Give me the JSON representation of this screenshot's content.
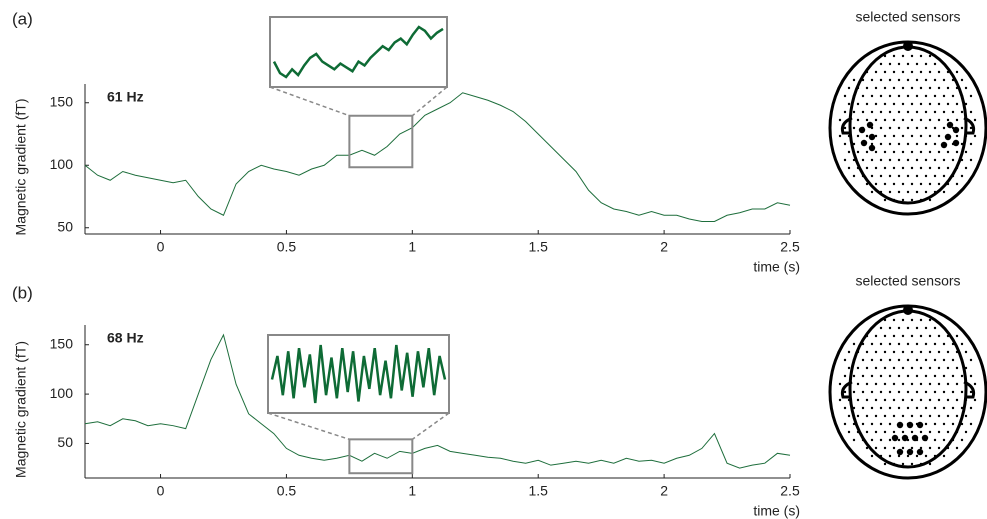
{
  "chart_data": [
    {
      "type": "line",
      "panel": "(a)",
      "annotation": "61 Hz",
      "ylabel": "Magnetic gradient (fT)",
      "xlabel": "time (s)",
      "sensor_title": "selected sensors",
      "color": "#1e6e3c",
      "x": [
        -0.3,
        -0.25,
        -0.2,
        -0.15,
        -0.1,
        -0.05,
        0,
        0.05,
        0.1,
        0.15,
        0.2,
        0.25,
        0.3,
        0.35,
        0.4,
        0.45,
        0.5,
        0.55,
        0.6,
        0.65,
        0.7,
        0.75,
        0.8,
        0.85,
        0.9,
        0.95,
        1.0,
        1.05,
        1.1,
        1.15,
        1.2,
        1.25,
        1.3,
        1.35,
        1.4,
        1.45,
        1.5,
        1.55,
        1.6,
        1.65,
        1.7,
        1.75,
        1.8,
        1.85,
        1.9,
        1.95,
        2.0,
        2.05,
        2.1,
        2.15,
        2.2,
        2.25,
        2.3,
        2.35,
        2.4,
        2.45,
        2.5
      ],
      "values": [
        100,
        92,
        88,
        95,
        92,
        90,
        88,
        86,
        88,
        75,
        65,
        60,
        85,
        95,
        100,
        97,
        95,
        92,
        97,
        100,
        108,
        108,
        112,
        108,
        115,
        125,
        130,
        140,
        145,
        150,
        158,
        155,
        152,
        148,
        143,
        135,
        125,
        115,
        105,
        95,
        80,
        70,
        65,
        63,
        60,
        63,
        60,
        60,
        57,
        55,
        55,
        60,
        62,
        65,
        65,
        70,
        68
      ],
      "zoom_x": [
        0.75,
        1.0
      ],
      "inset_values": [
        110,
        104,
        102,
        106,
        103,
        108,
        112,
        114,
        110,
        108,
        106,
        109,
        107,
        105,
        110,
        108,
        112,
        115,
        118,
        116,
        120,
        122,
        119,
        124,
        128,
        126,
        122,
        125,
        127
      ],
      "xlim": [
        -0.3,
        2.5
      ],
      "xticks": [
        0,
        0.5,
        1,
        1.5,
        2,
        2.5
      ],
      "ylim": [
        45,
        165
      ],
      "yticks": [
        50,
        100,
        150
      ]
    },
    {
      "type": "line",
      "panel": "(b)",
      "annotation": "68 Hz",
      "ylabel": "Magnetic gradient (fT)",
      "xlabel": "time (s)",
      "sensor_title": "selected sensors",
      "color": "#1e6e3c",
      "x": [
        -0.3,
        -0.25,
        -0.2,
        -0.15,
        -0.1,
        -0.05,
        0,
        0.05,
        0.1,
        0.15,
        0.2,
        0.25,
        0.3,
        0.35,
        0.4,
        0.45,
        0.5,
        0.55,
        0.6,
        0.65,
        0.7,
        0.75,
        0.8,
        0.85,
        0.9,
        0.95,
        1.0,
        1.05,
        1.1,
        1.15,
        1.2,
        1.25,
        1.3,
        1.35,
        1.4,
        1.45,
        1.5,
        1.55,
        1.6,
        1.65,
        1.7,
        1.75,
        1.8,
        1.85,
        1.9,
        1.95,
        2.0,
        2.05,
        2.1,
        2.15,
        2.2,
        2.25,
        2.3,
        2.35,
        2.4,
        2.45,
        2.5
      ],
      "values": [
        70,
        72,
        68,
        75,
        73,
        68,
        70,
        68,
        65,
        100,
        135,
        160,
        110,
        80,
        70,
        60,
        45,
        38,
        35,
        33,
        35,
        38,
        32,
        40,
        35,
        42,
        40,
        45,
        48,
        42,
        40,
        38,
        36,
        35,
        32,
        30,
        33,
        28,
        30,
        32,
        30,
        33,
        30,
        35,
        32,
        33,
        30,
        35,
        38,
        45,
        60,
        30,
        25,
        28,
        30,
        40,
        38
      ],
      "zoom_x": [
        0.75,
        1.0
      ],
      "inset_values": [
        40,
        55,
        30,
        58,
        28,
        60,
        35,
        56,
        25,
        62,
        30,
        54,
        28,
        60,
        32,
        58,
        26,
        55,
        34,
        60,
        30,
        52,
        28,
        62,
        33,
        57,
        29,
        58,
        35,
        60,
        30,
        55,
        40
      ],
      "xlim": [
        -0.3,
        2.5
      ],
      "xticks": [
        0,
        0.5,
        1,
        1.5,
        2,
        2.5
      ],
      "ylim": [
        15,
        170
      ],
      "yticks": [
        50,
        100,
        150
      ]
    }
  ]
}
